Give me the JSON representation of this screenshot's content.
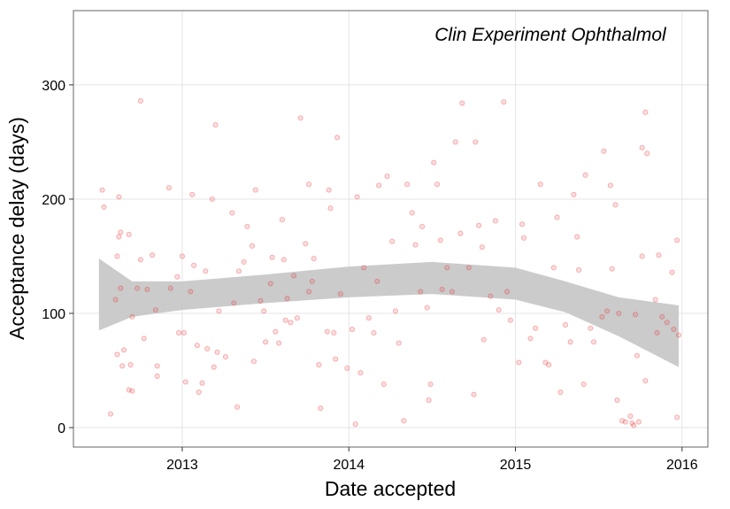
{
  "chart_data": {
    "type": "scatter",
    "annotation": "Clin Experiment Ophthalmol",
    "x_label": "Date accepted",
    "y_label": "Acceptance delay (days)",
    "xlim": [
      2012.347,
      2016.155
    ],
    "ylim": [
      -17,
      365
    ],
    "xticks": [
      2013,
      2014,
      2015,
      2016
    ],
    "yticks": [
      0,
      100,
      200,
      300
    ],
    "grid": true,
    "color": "#e8262a",
    "band_color": "#c8c8c8",
    "x": [
      2012.52,
      2012.53,
      2012.57,
      2012.6,
      2012.61,
      2012.62,
      2012.62,
      2012.63,
      2012.63,
      2012.61,
      2012.64,
      2012.65,
      2012.68,
      2012.68,
      2012.69,
      2012.7,
      2012.7,
      2012.73,
      2012.75,
      2012.75,
      2012.77,
      2012.79,
      2012.82,
      2012.84,
      2012.85,
      2012.85,
      2012.92,
      2012.93,
      2012.97,
      2012.98,
      2013.0,
      2013.01,
      2013.02,
      2013.05,
      2013.06,
      2013.07,
      2013.09,
      2013.1,
      2013.12,
      2013.14,
      2013.15,
      2013.18,
      2013.19,
      2013.2,
      2013.21,
      2013.22,
      2013.26,
      2013.3,
      2013.31,
      2013.33,
      2013.34,
      2013.37,
      2013.39,
      2013.43,
      2013.44,
      2013.42,
      2013.47,
      2013.49,
      2013.5,
      2013.53,
      2013.54,
      2013.56,
      2013.58,
      2013.6,
      2013.61,
      2013.62,
      2013.63,
      2013.65,
      2013.67,
      2013.69,
      2013.71,
      2013.74,
      2013.76,
      2013.76,
      2013.78,
      2013.79,
      2013.82,
      2013.83,
      2013.87,
      2013.88,
      2013.89,
      2013.91,
      2013.92,
      2013.93,
      2013.95,
      2013.99,
      2014.02,
      2014.04,
      2014.05,
      2014.07,
      2014.09,
      2014.12,
      2014.15,
      2014.17,
      2014.18,
      2014.21,
      2014.23,
      2014.26,
      2014.28,
      2014.3,
      2014.33,
      2014.35,
      2014.38,
      2014.4,
      2014.43,
      2014.44,
      2014.47,
      2014.48,
      2014.49,
      2014.51,
      2014.53,
      2014.55,
      2014.56,
      2014.59,
      2014.62,
      2014.64,
      2014.67,
      2014.68,
      2014.72,
      2014.75,
      2014.76,
      2014.78,
      2014.8,
      2014.81,
      2014.85,
      2014.88,
      2014.9,
      2014.93,
      2014.95,
      2014.97,
      2015.02,
      2015.04,
      2015.05,
      2015.09,
      2015.12,
      2015.15,
      2015.18,
      2015.2,
      2015.23,
      2015.25,
      2015.27,
      2015.3,
      2015.33,
      2015.35,
      2015.37,
      2015.38,
      2015.41,
      2015.42,
      2015.45,
      2015.47,
      2015.52,
      2015.53,
      2015.55,
      2015.57,
      2015.58,
      2015.6,
      2015.61,
      2015.62,
      2015.64,
      2015.66,
      2015.69,
      2015.7,
      2015.71,
      2015.72,
      2015.73,
      2015.74,
      2015.76,
      2015.76,
      2015.78,
      2015.78,
      2015.79,
      2015.84,
      2015.85,
      2015.86,
      2015.88,
      2015.91,
      2015.94,
      2015.95,
      2015.97,
      2015.97,
      2015.98
    ],
    "values": [
      208,
      193,
      12,
      112,
      150,
      202,
      167,
      122,
      171,
      64,
      54,
      68,
      169,
      33,
      55,
      32,
      97,
      122,
      286,
      147,
      78,
      121,
      151,
      103,
      54,
      45,
      210,
      122,
      132,
      83,
      150,
      83,
      40,
      119,
      204,
      142,
      72,
      31,
      39,
      137,
      69,
      200,
      53,
      265,
      66,
      102,
      62,
      188,
      109,
      18,
      137,
      145,
      176,
      58,
      208,
      159,
      111,
      102,
      75,
      126,
      149,
      84,
      74,
      182,
      147,
      94,
      113,
      92,
      133,
      96,
      271,
      161,
      119,
      213,
      128,
      148,
      55,
      17,
      84,
      208,
      192,
      83,
      60,
      254,
      117,
      52,
      86,
      3,
      202,
      48,
      140,
      96,
      83,
      128,
      212,
      38,
      220,
      163,
      102,
      74,
      6,
      213,
      188,
      160,
      119,
      176,
      105,
      24,
      38,
      232,
      213,
      164,
      121,
      140,
      119,
      250,
      170,
      284,
      140,
      29,
      250,
      177,
      158,
      77,
      115,
      181,
      103,
      285,
      119,
      94,
      57,
      178,
      166,
      78,
      87,
      213,
      57,
      55,
      140,
      184,
      31,
      90,
      75,
      204,
      167,
      138,
      38,
      221,
      87,
      75,
      97,
      242,
      102,
      212,
      139,
      195,
      24,
      100,
      6,
      5,
      10,
      4,
      2,
      99,
      63,
      5,
      150,
      245,
      41,
      276,
      240,
      112,
      83,
      151,
      97,
      92,
      136,
      86,
      164,
      9,
      81
    ],
    "band": {
      "x": [
        2012.5,
        2012.7,
        2013.0,
        2013.5,
        2014.0,
        2014.5,
        2015.0,
        2015.3,
        2015.62,
        2015.98
      ],
      "upper": [
        148,
        128,
        128,
        134,
        141,
        145,
        140,
        128,
        114,
        107
      ],
      "lower": [
        85,
        97,
        103,
        109,
        114,
        117,
        112,
        101,
        80,
        53
      ]
    }
  }
}
